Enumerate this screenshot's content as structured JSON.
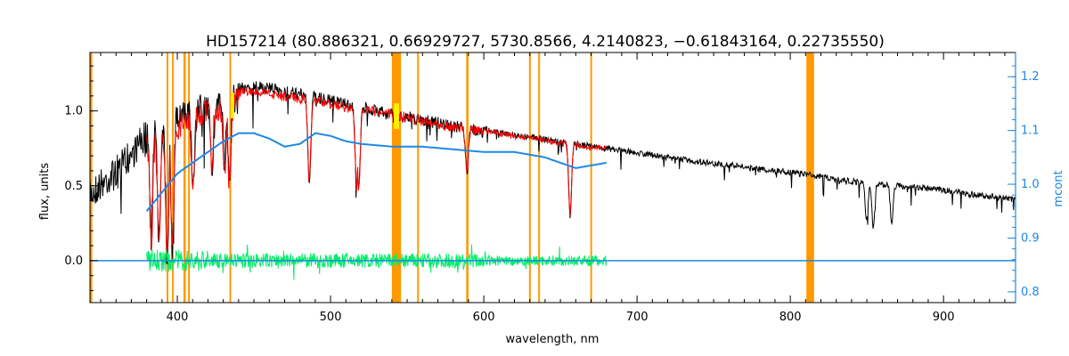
{
  "chart_data": {
    "type": "line",
    "title": "HD157214   (80.886321, 0.66929727, 5730.8566, 4.2140823, −0.61843164, 0.22735550)",
    "xlabel": "wavelength, nm",
    "ylabel": "flux, units",
    "y2label": "mcont",
    "xlim": [
      343,
      947
    ],
    "ylim": [
      -0.28,
      1.39
    ],
    "y2lim": [
      0.78,
      1.245
    ],
    "x_ticks": [
      400,
      500,
      600,
      700,
      800,
      900
    ],
    "y_ticks": [
      0.0,
      0.5,
      1.0
    ],
    "y_tick_labels": [
      "0.0",
      "0.5",
      "1.0"
    ],
    "y2_ticks": [
      0.8,
      0.9,
      1.0,
      1.1,
      1.2
    ],
    "y2_tick_labels": [
      "0.8",
      "0.9",
      "1.0",
      "1.1",
      "1.2"
    ],
    "masked_regions_nm": [
      [
        343,
        344.5
      ],
      [
        393,
        394
      ],
      [
        396.5,
        397.5
      ],
      [
        404,
        405.5
      ],
      [
        407,
        408
      ],
      [
        434,
        435
      ],
      [
        540,
        546
      ],
      [
        556.5,
        557.5
      ],
      [
        588.5,
        590
      ],
      [
        629.5,
        630.5
      ],
      [
        635.5,
        636.5
      ],
      [
        669.5,
        670.5
      ],
      [
        810.5,
        815.5
      ]
    ],
    "colors": {
      "observed": "#000000",
      "model": "#ff0000",
      "continuum": "#1e88e5",
      "residual": "#00ee66",
      "mask": "#ff9900",
      "highlight": "#ffee00",
      "axis": "#000000",
      "right_axis": "#1e88e5"
    },
    "series": [
      {
        "role": "observed",
        "x": [
          343,
          350,
          360,
          370,
          380,
          390,
          400,
          410,
          420,
          430,
          440,
          450,
          460,
          470,
          480,
          490,
          500,
          520,
          540,
          560,
          580,
          600,
          620,
          640,
          660,
          680,
          700,
          720,
          740,
          760,
          780,
          800,
          820,
          840,
          860,
          880,
          900,
          920,
          947
        ],
        "y": [
          0.55,
          0.62,
          0.7,
          0.82,
          0.95,
          1.0,
          1.05,
          1.1,
          1.15,
          1.18,
          1.19,
          1.2,
          1.19,
          1.17,
          1.15,
          1.13,
          1.11,
          1.06,
          1.02,
          0.98,
          0.94,
          0.9,
          0.86,
          0.83,
          0.8,
          0.77,
          0.74,
          0.71,
          0.68,
          0.66,
          0.63,
          0.61,
          0.58,
          0.55,
          0.53,
          0.51,
          0.49,
          0.46,
          0.43
        ]
      },
      {
        "role": "model",
        "x": [
          380,
          385,
          390,
          395,
          400,
          410,
          420,
          430,
          440,
          450,
          460,
          470,
          480,
          490,
          500,
          520,
          540,
          560,
          580,
          600,
          620,
          640,
          660,
          680
        ],
        "y": [
          0.85,
          0.9,
          0.92,
          0.96,
          1.0,
          1.05,
          1.1,
          1.14,
          1.16,
          1.16,
          1.15,
          1.13,
          1.12,
          1.1,
          1.08,
          1.04,
          1.01,
          0.97,
          0.93,
          0.89,
          0.85,
          0.82,
          0.79,
          0.77
        ]
      },
      {
        "role": "continuum",
        "x": [
          380,
          390,
          400,
          410,
          420,
          430,
          440,
          450,
          460,
          470,
          480,
          490,
          500,
          510,
          520,
          540,
          560,
          580,
          600,
          620,
          640,
          650,
          660,
          670,
          680
        ],
        "y": [
          0.97,
          0.99,
          1.02,
          1.04,
          1.06,
          1.08,
          1.095,
          1.095,
          1.085,
          1.07,
          1.075,
          1.095,
          1.09,
          1.08,
          1.075,
          1.07,
          1.07,
          1.065,
          1.06,
          1.06,
          1.05,
          1.04,
          1.03,
          1.035,
          1.04
        ]
      }
    ],
    "absorption_lines": [
      {
        "x": 383,
        "y": 0.28
      },
      {
        "x": 388,
        "y": 0.25
      },
      {
        "x": 393.4,
        "y": 0.12
      },
      {
        "x": 396.8,
        "y": 0.15
      },
      {
        "x": 410.2,
        "y": 0.55
      },
      {
        "x": 422.7,
        "y": 0.75
      },
      {
        "x": 430.8,
        "y": 0.72
      },
      {
        "x": 434.0,
        "y": 0.62
      },
      {
        "x": 486.1,
        "y": 0.55
      },
      {
        "x": 517.0,
        "y": 0.52
      },
      {
        "x": 518.4,
        "y": 0.5
      },
      {
        "x": 589.0,
        "y": 0.62
      },
      {
        "x": 656.3,
        "y": 0.32
      },
      {
        "x": 849.8,
        "y": 0.28
      },
      {
        "x": 854.2,
        "y": 0.24
      },
      {
        "x": 866.2,
        "y": 0.25
      }
    ],
    "residual_range_nm": [
      380,
      680
    ],
    "residual_amplitude": 0.05,
    "residual_axis_line": {
      "y": 0.0
    }
  }
}
